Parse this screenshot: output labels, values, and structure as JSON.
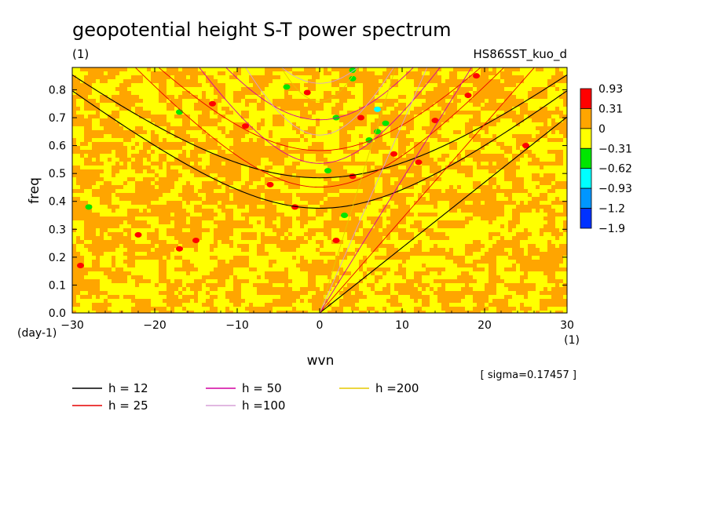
{
  "chart_data": {
    "type": "heatmap",
    "title": "geopotential height S-T power spectrum",
    "subtitle": "(1)",
    "case_label": "HS86SST_kuo_d",
    "xlabel": "wvn",
    "ylabel": "freq",
    "x_unit": "(1)",
    "y_unit": "(day-1)",
    "xlim": [
      -30,
      30
    ],
    "ylim": [
      0,
      0.88
    ],
    "x_ticks": [
      -30,
      -20,
      -10,
      0,
      10,
      20,
      30
    ],
    "x_tick_labels": [
      "−30",
      "−20",
      "−10",
      "0",
      "10",
      "20",
      "30"
    ],
    "y_ticks": [
      0,
      0.1,
      0.2,
      0.3,
      0.4,
      0.5,
      0.6,
      0.7,
      0.8
    ],
    "y_tick_labels": [
      "0.0",
      "0.1",
      "0.2",
      "0.3",
      "0.4",
      "0.5",
      "0.6",
      "0.7",
      "0.8"
    ],
    "colorbar": {
      "levels": [
        "0.93",
        "0.31",
        "0",
        "−0.31",
        "−0.62",
        "−0.93",
        "−1.2",
        "−1.9"
      ],
      "colors": [
        "#ff0000",
        "#ffa500",
        "#ffff00",
        "#00e600",
        "#00ffff",
        "#0096ff",
        "#0032ff"
      ]
    },
    "field_description": "noisy normalized power; mostly orange (0 to 0.31) and yellow (−0.31 to 0) patches with scattered red, green and cyan spots",
    "dispersion_curves": [
      {
        "name": "h = 12",
        "color": "#000000"
      },
      {
        "name": "h = 25",
        "color": "#e60000"
      },
      {
        "name": "h = 50",
        "color": "#d200a0"
      },
      {
        "name": "h =100",
        "color": "#d7a0d7"
      },
      {
        "name": "h =200",
        "color": "#e6c800"
      }
    ],
    "legend": [
      {
        "label": "h = 12",
        "color": "#000000"
      },
      {
        "label": "h = 25",
        "color": "#e60000"
      },
      {
        "label": "h = 50",
        "color": "#d200a0"
      },
      {
        "label": "h =100",
        "color": "#d7a0d7"
      },
      {
        "label": "h =200",
        "color": "#e6c800"
      }
    ],
    "sigma_note": "[ sigma=0.17457 ]"
  }
}
